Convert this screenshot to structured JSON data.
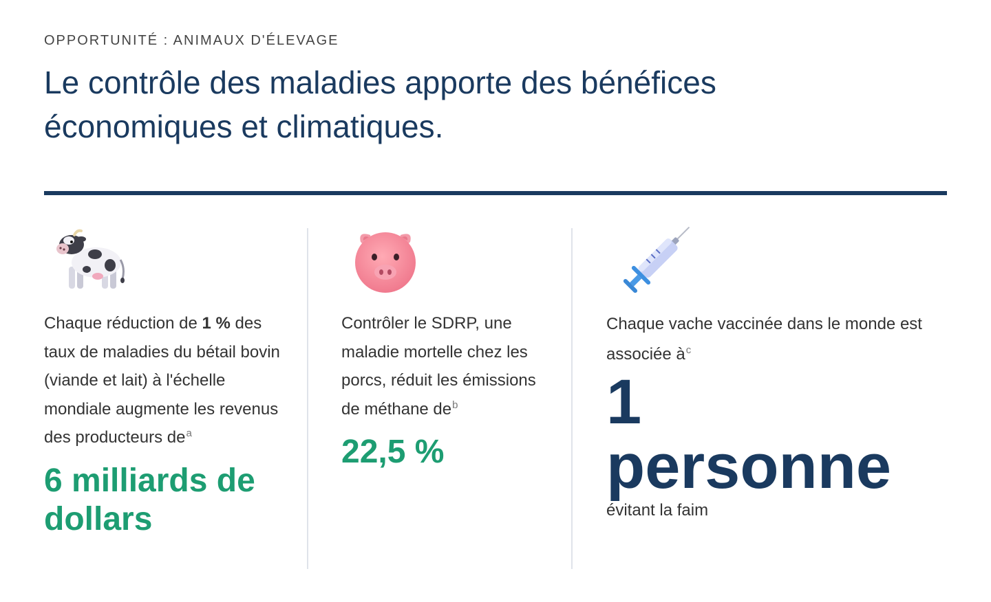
{
  "eyebrow": "OPPORTUNITÉ : ANIMAUX D'ÉLEVAGE",
  "headline": "Le contrôle des maladies apporte des bénéfices économiques et climatiques.",
  "colors": {
    "navy": "#1a3a5f",
    "green": "#1d9d72",
    "divider": "#dfe3ea"
  },
  "columns": [
    {
      "icon": "cow-icon",
      "text_before": "Chaque réduction de ",
      "text_bold": "1 %",
      "text_after": " des taux de maladies du bétail bovin (viande et lait) à l'échelle mondiale augmente les revenus des producteurs de",
      "footnote": "a",
      "stat": "6 milliards de dollars"
    },
    {
      "icon": "pig-face-icon",
      "text": "Contrôler le SDRP, une maladie mortelle chez les porcs, réduit les émissions de méthane de",
      "footnote": "b",
      "stat": "22,5 %"
    },
    {
      "icon": "syringe-icon",
      "text": "Chaque vache vaccinée dans le monde est associée à",
      "footnote": "c",
      "stat_number": "1",
      "stat_word": "personne",
      "stat_caption": "évitant la faim"
    }
  ]
}
